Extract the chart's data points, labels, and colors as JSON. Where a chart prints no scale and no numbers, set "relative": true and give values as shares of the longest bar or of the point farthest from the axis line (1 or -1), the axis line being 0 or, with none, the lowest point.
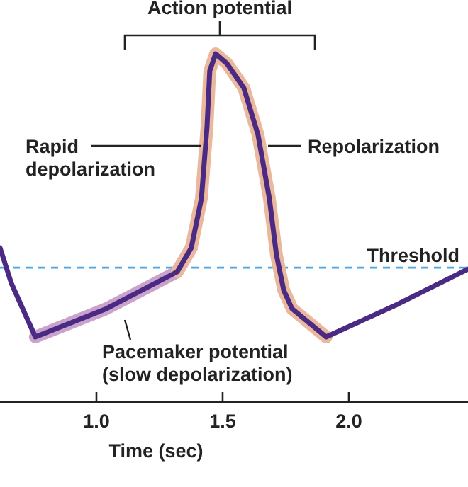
{
  "chart_data": {
    "type": "line",
    "relative": true,
    "xlabel": "Time (sec)",
    "xlim": [
      0.618,
      2.472
    ],
    "xticks": [
      {
        "value": 1,
        "label": "1.0"
      },
      {
        "value": 1.5,
        "label": "1.5"
      },
      {
        "value": 2,
        "label": "2.0"
      }
    ],
    "grid": false,
    "line_style": "solid",
    "series": [
      {
        "color": "#c9a3cc",
        "x": [
          0.758,
          1.039,
          1.32,
          1.376
        ],
        "values": [
          0.187,
          0.268,
          0.374,
          0.443
        ]
      },
      {
        "color": "#eab89c",
        "x": [
          1.32,
          1.376,
          1.416,
          1.438,
          1.449,
          1.472,
          1.517,
          1.584,
          1.64,
          1.685,
          1.713,
          1.742,
          1.775,
          1.91
        ],
        "values": [
          0.374,
          0.443,
          0.585,
          0.789,
          0.951,
          1.0,
          0.972,
          0.902,
          0.768,
          0.585,
          0.423,
          0.321,
          0.268,
          0.187
        ]
      },
      {
        "color": "#4b2a84",
        "x": [
          0.618,
          0.663,
          0.758,
          1.039,
          1.32,
          1.376,
          1.416,
          1.438,
          1.449,
          1.472,
          1.517,
          1.584,
          1.64,
          1.685,
          1.713,
          1.742,
          1.775,
          1.91,
          2.191,
          2.472
        ],
        "values": [
          0.443,
          0.341,
          0.187,
          0.268,
          0.374,
          0.443,
          0.585,
          0.789,
          0.951,
          1.0,
          0.972,
          0.902,
          0.768,
          0.585,
          0.423,
          0.321,
          0.268,
          0.187,
          0.28,
          0.382
        ]
      }
    ],
    "ref_lines": [
      {
        "axis": "y",
        "value": 0.386,
        "label": "Threshold",
        "color": "#4aa8dc",
        "line_style": "dashed"
      }
    ],
    "annotations": [
      "Action potential",
      "Rapid depolarization",
      "Repolarization",
      "Pacemaker potential (slow depolarization)"
    ]
  }
}
